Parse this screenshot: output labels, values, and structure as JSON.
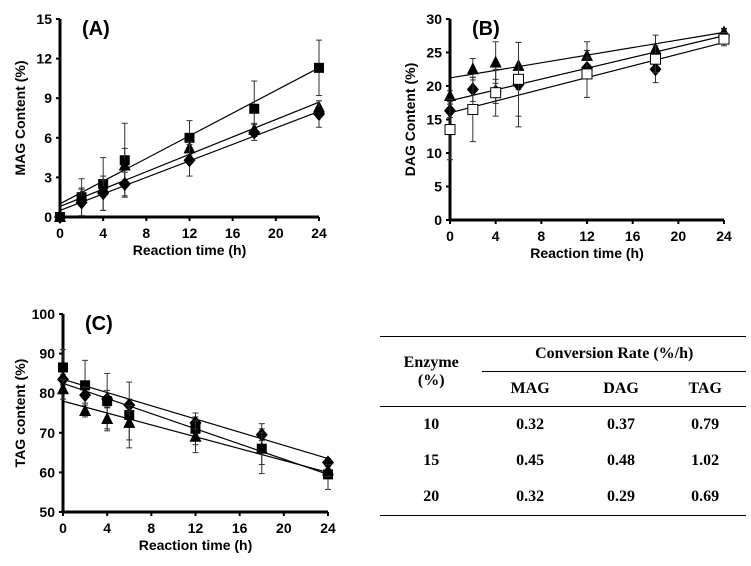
{
  "chart_data": [
    {
      "type": "scatter",
      "panel": "(A)",
      "xlabel": "Reaction time (h)",
      "ylabel": "MAG Content (%)",
      "xlim": [
        0,
        24
      ],
      "ylim": [
        0,
        15
      ],
      "xticks": [
        0,
        4,
        8,
        12,
        16,
        20,
        24
      ],
      "yticks": [
        0,
        3,
        6,
        9,
        12,
        15
      ],
      "x": [
        0,
        2,
        4,
        6,
        12,
        18,
        24
      ],
      "series": [
        {
          "marker": "square",
          "values": [
            0,
            1.5,
            2.5,
            4.3,
            6.0,
            8.2,
            11.3
          ],
          "errors": [
            0,
            1.4,
            2.0,
            2.8,
            1.3,
            2.1,
            2.1
          ],
          "fit": [
            1.0,
            11.3
          ]
        },
        {
          "marker": "triangle",
          "values": [
            0,
            1.6,
            2.2,
            3.9,
            5.2,
            6.6,
            8.3
          ],
          "errors": [
            0,
            0.6,
            0.6,
            1.3,
            0.5,
            0.5,
            0.5
          ],
          "fit": [
            0.8,
            8.7
          ]
        },
        {
          "marker": "diamond",
          "values": [
            0,
            1.1,
            1.8,
            2.5,
            4.3,
            6.4,
            7.8
          ],
          "errors": [
            0,
            1.0,
            1.3,
            0.9,
            1.2,
            0.6,
            1.0
          ],
          "fit": [
            0.5,
            8.0
          ]
        }
      ]
    },
    {
      "type": "scatter",
      "panel": "(B)",
      "xlabel": "Reaction time (h)",
      "ylabel": "DAG Content (%)",
      "xlim": [
        0,
        24
      ],
      "ylim": [
        0,
        30
      ],
      "xticks": [
        0,
        4,
        8,
        12,
        16,
        20,
        24
      ],
      "yticks": [
        0,
        5,
        10,
        15,
        20,
        25,
        30
      ],
      "x": [
        0,
        2,
        4,
        6,
        12,
        18,
        24
      ],
      "series": [
        {
          "marker": "triangle",
          "values": [
            18.5,
            22.5,
            23.5,
            23.0,
            24.5,
            25.5,
            28.0
          ],
          "errors": [
            0.8,
            1.6,
            3.1,
            3.5,
            2.1,
            2.1,
            0.6
          ],
          "fit": [
            21.2,
            28.0
          ]
        },
        {
          "marker": "diamond",
          "values": [
            16.3,
            19.5,
            19.2,
            20.2,
            22.7,
            22.5,
            27.5
          ],
          "errors": [
            1.0,
            1.8,
            1.8,
            6.3,
            1.5,
            2.0,
            1.0
          ],
          "fit": [
            17.8,
            27.5
          ]
        },
        {
          "marker": "open-square",
          "values": [
            13.5,
            16.5,
            19.0,
            21.0,
            21.8,
            24.0,
            27.0
          ],
          "errors": [
            4.5,
            4.8,
            3.5,
            5.5,
            3.5,
            2.0,
            1.0
          ],
          "fit": [
            16.0,
            26.5
          ]
        }
      ]
    },
    {
      "type": "scatter",
      "panel": "(C)",
      "xlabel": "Reaction time (h)",
      "ylabel": "TAG content (%)",
      "xlim": [
        0,
        24
      ],
      "ylim": [
        50,
        100
      ],
      "xticks": [
        0,
        4,
        8,
        12,
        16,
        20,
        24
      ],
      "yticks": [
        50,
        60,
        70,
        80,
        90,
        100
      ],
      "x": [
        0,
        2,
        4,
        6,
        12,
        18,
        24
      ],
      "series": [
        {
          "marker": "square",
          "values": [
            86.5,
            82.0,
            78.0,
            74.5,
            71.0,
            66.0,
            59.5
          ],
          "errors": [
            4.5,
            6.3,
            7.0,
            8.3,
            4.0,
            6.3,
            3.8
          ],
          "fit": [
            82.5,
            59.5
          ]
        },
        {
          "marker": "diamond",
          "values": [
            83.5,
            79.5,
            78.5,
            77.0,
            72.5,
            69.5,
            62.5
          ],
          "errors": [
            1.2,
            2.0,
            2.2,
            1.5,
            1.5,
            1.5,
            1.0
          ],
          "fit": [
            83.5,
            63.5
          ]
        },
        {
          "marker": "triangle",
          "values": [
            81.0,
            75.5,
            73.5,
            72.5,
            69.0,
            66.0,
            60.5
          ],
          "errors": [
            2.5,
            1.5,
            3.0,
            4.3,
            4.0,
            4.0,
            1.5
          ],
          "fit": [
            78.0,
            60.0
          ]
        }
      ]
    }
  ],
  "table": {
    "row_header": [
      "Enzyme",
      "(%)"
    ],
    "group_header": "Conversion Rate (%/h)",
    "columns": [
      "MAG",
      "DAG",
      "TAG"
    ],
    "rows": [
      {
        "enzyme": "10",
        "values": [
          "0.32",
          "0.37",
          "0.79"
        ]
      },
      {
        "enzyme": "15",
        "values": [
          "0.45",
          "0.48",
          "1.02"
        ]
      },
      {
        "enzyme": "20",
        "values": [
          "0.32",
          "0.29",
          "0.69"
        ]
      }
    ]
  }
}
